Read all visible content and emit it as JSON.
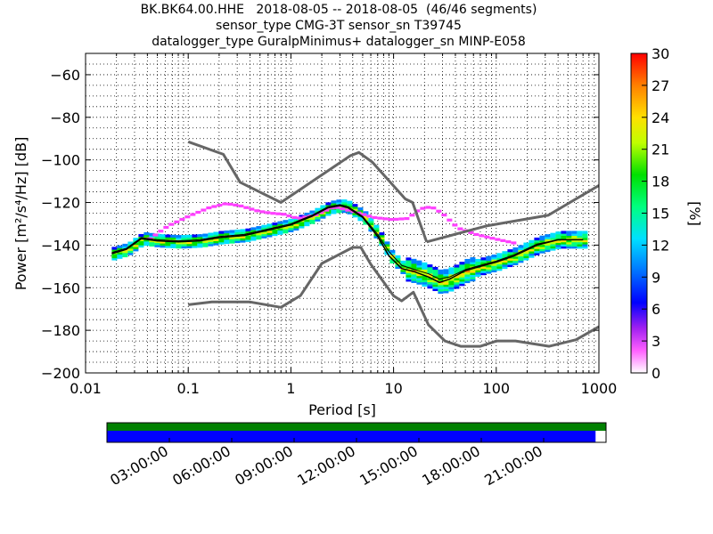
{
  "title_lines": [
    "BK.BK64.00.HHE   2018-08-05 -- 2018-08-05  (46/46 segments)",
    "sensor_type CMG-3T sensor_sn T39745",
    "datalogger_type GuralpMinimus+ datalogger_sn MINP-E058"
  ],
  "chart_data": {
    "type": "heatmap",
    "xlabel": "Period [s]",
    "ylabel": "Power [m²/s⁴/Hz] [dB]",
    "xscale": "log",
    "xlim": [
      0.01,
      1000
    ],
    "ylim": [
      -200,
      -50
    ],
    "xticks": [
      0.01,
      0.1,
      1,
      10,
      100,
      1000
    ],
    "xtick_labels": [
      "0.01",
      "0.1",
      "1",
      "10",
      "100",
      "1000"
    ],
    "yticks": [
      -200,
      -180,
      -160,
      -140,
      -120,
      -100,
      -80,
      -60
    ],
    "yticklabels": [
      "−200",
      "−180",
      "−160",
      "−140",
      "−120",
      "−100",
      "−80",
      "−60"
    ],
    "grid": true,
    "colorbar": {
      "label": "[%]",
      "range": [
        0,
        30
      ],
      "ticks": [
        0,
        3,
        6,
        9,
        12,
        15,
        18,
        21,
        24,
        27,
        30
      ],
      "tick_labels": [
        "0",
        "3",
        "6",
        "9",
        "12",
        "15",
        "18",
        "21",
        "24",
        "27",
        "30"
      ]
    },
    "noise_models": [
      {
        "x": [
          0.1,
          0.22,
          0.32,
          0.8,
          3.8,
          4.6,
          6.2,
          13,
          15.3,
          21
        ],
        "y": [
          -91.5,
          -97.4,
          -110.5,
          -120,
          -98,
          -96.5,
          -101,
          -118.3,
          -120,
          -138.5
        ]
      },
      {
        "x": [
          21,
          80,
          320,
          1000
        ],
        "y": [
          -138.5,
          -131,
          -126,
          -112
        ]
      },
      {
        "x": [
          0.1,
          0.17,
          0.4,
          0.8,
          1.24,
          2,
          4,
          4.8,
          6,
          10,
          12,
          15.6,
          21.9,
          31.6,
          45,
          70,
          101,
          154,
          328,
          600,
          1000
        ],
        "y": [
          -168,
          -166.7,
          -166.7,
          -169.2,
          -163.7,
          -148.6,
          -141.1,
          -141.1,
          -149,
          -163.8,
          -166.2,
          -162.1,
          -177.5,
          -185,
          -187.5,
          -187.5,
          -185,
          -185,
          -187.5,
          -184.4,
          -178.3
        ]
      }
    ],
    "mode_curve": {
      "x": [
        0.018,
        0.025,
        0.035,
        0.05,
        0.08,
        0.13,
        0.2,
        0.35,
        0.6,
        1,
        1.6,
        2.3,
        3,
        3.6,
        5,
        7,
        9,
        12,
        16,
        22,
        28,
        35,
        50,
        70,
        100,
        150,
        250,
        400,
        600,
        700
      ],
      "y": [
        -144,
        -142,
        -137,
        -138,
        -138.5,
        -138,
        -136.5,
        -135.5,
        -133,
        -130.5,
        -126.5,
        -122.5,
        -121.5,
        -122.5,
        -127,
        -136,
        -145,
        -151,
        -152.5,
        -155,
        -157.5,
        -156,
        -152,
        -150,
        -148,
        -145,
        -140,
        -137.5,
        -137.5,
        -137.5
      ]
    },
    "mean_curve": {
      "x": [
        0.018,
        0.025,
        0.035,
        0.05,
        0.08,
        0.13,
        0.2,
        0.35,
        0.6,
        1,
        1.6,
        2.3,
        3,
        3.6,
        5,
        7,
        9,
        12,
        16,
        22,
        28,
        35,
        50,
        70,
        100,
        150,
        250,
        400,
        600,
        700
      ],
      "y": [
        -143.5,
        -141.5,
        -136.5,
        -137.5,
        -138,
        -137.5,
        -136,
        -135,
        -132.5,
        -130,
        -126,
        -122,
        -121,
        -122,
        -126.5,
        -135,
        -143,
        -149.5,
        -151.5,
        -153.5,
        -156,
        -155,
        -151.5,
        -149.5,
        -147.5,
        -144.5,
        -139.5,
        -137.5,
        -137.5,
        -137.5
      ]
    },
    "upper_tail": {
      "x": [
        0.04,
        0.06,
        0.1,
        0.15,
        0.22,
        0.3,
        0.45,
        0.6,
        0.8,
        1.1,
        1.6,
        2.5,
        4,
        6,
        9,
        13,
        17,
        22,
        28,
        40,
        60,
        90,
        140
      ],
      "y": [
        -137,
        -131,
        -126,
        -122.5,
        -120.5,
        -121.5,
        -124,
        -125,
        -125.5,
        -127.5,
        -126,
        -122,
        -124.5,
        -127,
        -128,
        -127.5,
        -123,
        -122,
        -125,
        -132,
        -135,
        -137,
        -139
      ]
    },
    "time_coverage": {
      "tick_labels": [
        "03:00:00",
        "06:00:00",
        "09:00:00",
        "12:00:00",
        "15:00:00",
        "18:00:00",
        "21:00:00"
      ],
      "tick_hours": [
        3,
        6,
        9,
        12,
        15,
        18,
        21
      ],
      "start_hour": 0,
      "end_hour": 24,
      "data_coverage": [
        0,
        0.979
      ],
      "segment_coverage": [
        0,
        1
      ],
      "colors": {
        "data": "#0000ff",
        "segments": "#008000"
      }
    },
    "colors": {
      "noise_model": "#666666",
      "mode": "#000000",
      "mean": "#000000",
      "grid": "#000000"
    }
  }
}
